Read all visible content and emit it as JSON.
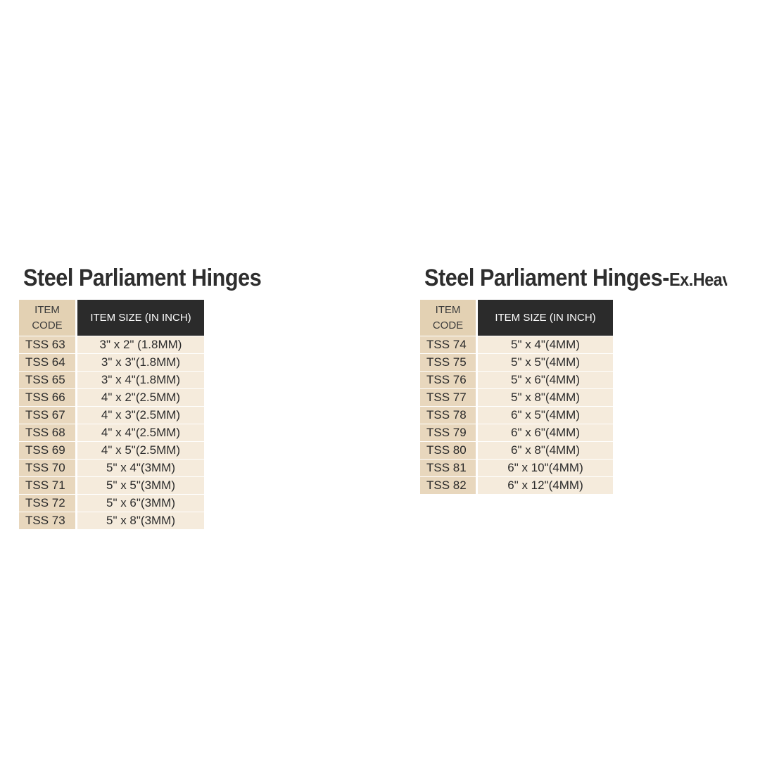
{
  "tables": [
    {
      "title": "Steel Parliament Hinges",
      "subtitle": "",
      "headers": {
        "code": "ITEM\nCODE",
        "code_line1": "ITEM",
        "code_line2": "CODE",
        "size": "ITEM SIZE (IN INCH)"
      },
      "rows": [
        {
          "code": "TSS 63",
          "size": "3\" x 2\" (1.8MM)"
        },
        {
          "code": "TSS 64",
          "size": "3\" x 3\"(1.8MM)"
        },
        {
          "code": "TSS 65",
          "size": "3\" x 4\"(1.8MM)"
        },
        {
          "code": "TSS 66",
          "size": "4\" x 2\"(2.5MM)"
        },
        {
          "code": "TSS 67",
          "size": "4\" x 3\"(2.5MM)"
        },
        {
          "code": "TSS 68",
          "size": "4\" x 4\"(2.5MM)"
        },
        {
          "code": "TSS 69",
          "size": "4\" x 5\"(2.5MM)"
        },
        {
          "code": "TSS 70",
          "size": "5\" x 4\"(3MM)"
        },
        {
          "code": "TSS 71",
          "size": "5\" x 5\"(3MM)"
        },
        {
          "code": "TSS 72",
          "size": "5\" x 6\"(3MM)"
        },
        {
          "code": "TSS 73",
          "size": "5\" x 8\"(3MM)"
        }
      ]
    },
    {
      "title": "Steel Parliament Hinges-",
      "subtitle": "Ex.Heavy",
      "headers": {
        "code_line1": "ITEM",
        "code_line2": "CODE",
        "size": "ITEM SIZE (IN INCH)"
      },
      "rows": [
        {
          "code": "TSS 74",
          "size": "5\" x 4\"(4MM)"
        },
        {
          "code": "TSS 75",
          "size": "5\" x 5\"(4MM)"
        },
        {
          "code": "TSS 76",
          "size": "5\" x 6\"(4MM)"
        },
        {
          "code": "TSS 77",
          "size": "5\" x 8\"(4MM)"
        },
        {
          "code": "TSS 78",
          "size": "6\" x 5\"(4MM)"
        },
        {
          "code": "TSS 79",
          "size": "6\" x 6\"(4MM)"
        },
        {
          "code": "TSS 80",
          "size": "6\" x 8\"(4MM)"
        },
        {
          "code": "TSS 81",
          "size": "6\" x 10\"(4MM)"
        },
        {
          "code": "TSS 82",
          "size": "6\" x 12\"(4MM)"
        }
      ]
    }
  ],
  "colors": {
    "header_dark": "#2b2b2b",
    "code_bg": "#e8d7bd",
    "size_bg": "#f5ebdc"
  }
}
